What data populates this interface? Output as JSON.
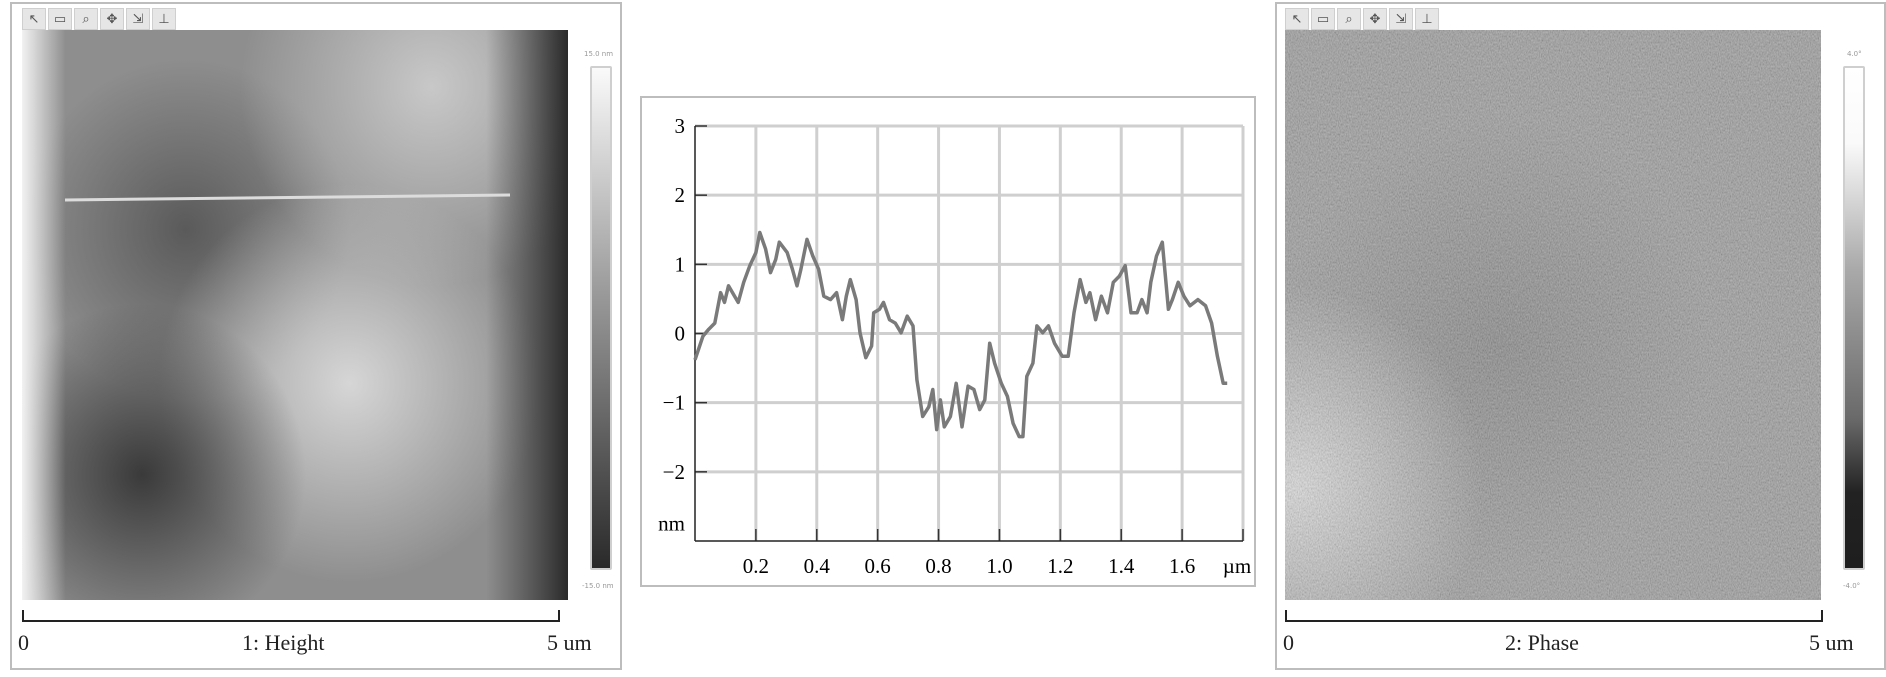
{
  "toolbar": {
    "icons": [
      "pointer-icon",
      "rectangle-icon",
      "zoom-icon",
      "pan-icon",
      "offset-icon",
      "export-icon"
    ],
    "glyphs": [
      "↖",
      "▭",
      "⌕",
      "✥",
      "⇲",
      "⊥"
    ]
  },
  "height_panel": {
    "title": "1: Height",
    "scale_start": "0",
    "scale_end": "5 um",
    "colorbar_max": "15.0 nm",
    "colorbar_min": "-15.0 nm"
  },
  "phase_panel": {
    "title": "2: Phase",
    "scale_start": "0",
    "scale_end": "5 um",
    "colorbar_max": "4.0°",
    "colorbar_min": "-4.0°"
  },
  "chart_data": {
    "type": "line",
    "xlabel": "µm",
    "ylabel": "nm",
    "xlim": [
      0,
      1.8
    ],
    "ylim": [
      -3,
      3
    ],
    "x_ticks": [
      "0.2",
      "0.4",
      "0.6",
      "0.8",
      "1.0",
      "1.2",
      "1.4",
      "1.6"
    ],
    "y_ticks": [
      "3",
      "2",
      "1",
      "0",
      "−1",
      "−2"
    ],
    "grid": true,
    "line_color": "#7a7a7a",
    "series": [
      {
        "x": [
          0,
          0.026,
          0.045,
          0.065,
          0.084,
          0.097,
          0.11,
          0.13,
          0.142,
          0.16,
          0.18,
          0.2,
          0.213,
          0.232,
          0.248,
          0.265,
          0.277,
          0.303,
          0.32,
          0.335,
          0.348,
          0.368,
          0.387,
          0.406,
          0.423,
          0.445,
          0.465,
          0.484,
          0.497,
          0.51,
          0.529,
          0.542,
          0.561,
          0.58,
          0.587,
          0.606,
          0.619,
          0.639,
          0.658,
          0.677,
          0.697,
          0.716,
          0.729,
          0.748,
          0.768,
          0.781,
          0.794,
          0.806,
          0.819,
          0.839,
          0.858,
          0.877,
          0.897,
          0.916,
          0.935,
          0.952,
          0.968,
          0.984,
          1.006,
          1.026,
          1.045,
          1.065,
          1.077,
          1.09,
          1.11,
          1.123,
          1.142,
          1.161,
          1.181,
          1.206,
          1.226,
          1.245,
          1.265,
          1.284,
          1.297,
          1.316,
          1.335,
          1.355,
          1.374,
          1.394,
          1.413,
          1.432,
          1.452,
          1.468,
          1.485,
          1.497,
          1.516,
          1.535,
          1.555,
          1.568,
          1.587,
          1.606,
          1.626,
          1.652,
          1.677,
          1.697,
          1.716,
          1.735,
          1.748
        ],
        "y": [
          -0.38,
          -0.04,
          0.06,
          0.15,
          0.59,
          0.45,
          0.69,
          0.54,
          0.45,
          0.74,
          0.98,
          1.17,
          1.46,
          1.22,
          0.88,
          1.07,
          1.32,
          1.17,
          0.93,
          0.69,
          0.93,
          1.36,
          1.12,
          0.93,
          0.54,
          0.49,
          0.59,
          0.2,
          0.54,
          0.78,
          0.49,
          0.01,
          -0.35,
          -0.18,
          0.3,
          0.35,
          0.45,
          0.2,
          0.15,
          0.01,
          0.25,
          0.11,
          -0.67,
          -1.2,
          -1.06,
          -0.81,
          -1.39,
          -0.96,
          -1.35,
          -1.2,
          -0.72,
          -1.35,
          -0.76,
          -0.81,
          -1.1,
          -0.96,
          -0.14,
          -0.43,
          -0.72,
          -0.91,
          -1.3,
          -1.49,
          -1.49,
          -0.62,
          -0.43,
          0.11,
          0.01,
          0.11,
          -0.14,
          -0.33,
          -0.33,
          0.3,
          0.78,
          0.45,
          0.59,
          0.2,
          0.54,
          0.3,
          0.74,
          0.83,
          0.98,
          0.3,
          0.3,
          0.49,
          0.3,
          0.74,
          1.12,
          1.32,
          0.35,
          0.49,
          0.74,
          0.54,
          0.4,
          0.49,
          0.4,
          0.15,
          -0.33,
          -0.72,
          -0.72
        ]
      }
    ]
  }
}
